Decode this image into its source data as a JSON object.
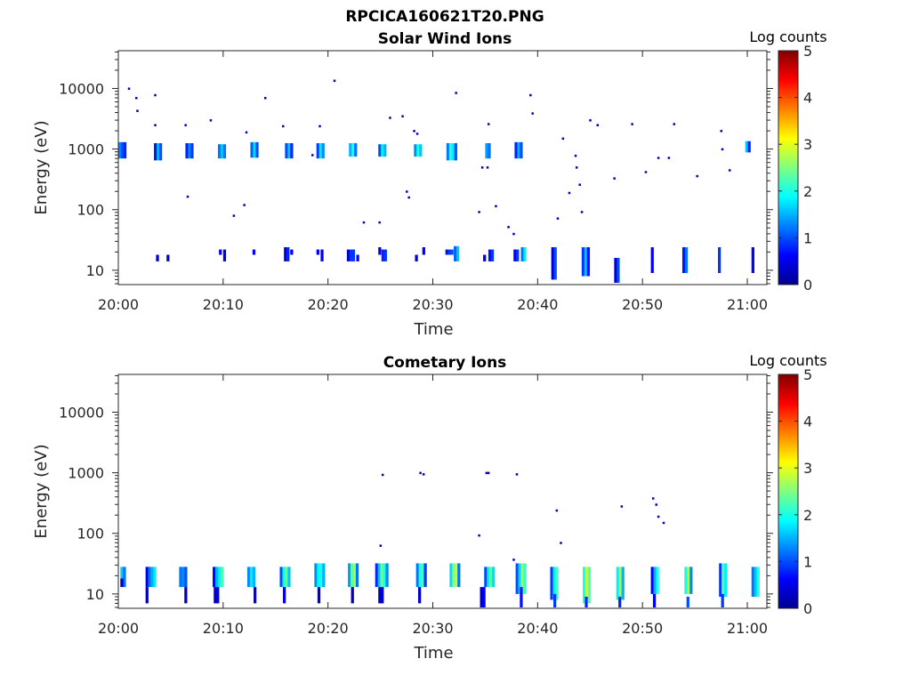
{
  "figure_title": "RPCICA160621T20.PNG",
  "chart_data": [
    {
      "type": "heatmap",
      "title": "Solar Wind Ions",
      "xlabel": "Time",
      "ylabel": "Energy (eV)",
      "x_unit": "minutes after 20:00",
      "xlim": [
        0,
        62
      ],
      "ylim": [
        5.8,
        42000
      ],
      "yscale": "log",
      "xtick_labels": [
        "20:00",
        "20:10",
        "20:20",
        "20:30",
        "20:40",
        "20:50",
        "21:00"
      ],
      "xtick_values": [
        0,
        10,
        20,
        30,
        40,
        50,
        60
      ],
      "ytick_labels": [
        "10",
        "100",
        "1000",
        "10000"
      ],
      "ytick_values": [
        10,
        100,
        1000,
        10000
      ],
      "colorbar": {
        "label": "Log counts",
        "range": [
          0,
          5
        ],
        "tick_labels": [
          "0",
          "1",
          "2",
          "3",
          "4",
          "5"
        ],
        "colormap": "jet"
      },
      "column_width_min": 0.25,
      "clusters": [
        {
          "t": 0.0,
          "e": [
            700,
            1300
          ],
          "values": [
            1.3,
            1.0,
            0.8
          ]
        },
        {
          "t": 3.4,
          "e": [
            650,
            1250
          ],
          "values": [
            0.7,
            1.5,
            1.0
          ]
        },
        {
          "t": 6.4,
          "e": [
            700,
            1250
          ],
          "values": [
            0.8,
            1.3,
            0.9
          ]
        },
        {
          "t": 9.5,
          "e": [
            700,
            1200
          ],
          "values": [
            1.2,
            1.6,
            1.2
          ]
        },
        {
          "t": 12.6,
          "e": [
            720,
            1300
          ],
          "values": [
            1.1,
            1.7,
            1.0
          ]
        },
        {
          "t": 15.9,
          "e": [
            700,
            1250
          ],
          "values": [
            1.0,
            1.6,
            0.8
          ]
        },
        {
          "t": 18.9,
          "e": [
            700,
            1250
          ],
          "values": [
            0.9,
            1.8,
            1.3
          ]
        },
        {
          "t": 22.0,
          "e": [
            750,
            1250
          ],
          "values": [
            1.5,
            2.0,
            1.2
          ]
        },
        {
          "t": 24.8,
          "e": [
            750,
            1200
          ],
          "values": [
            1.0,
            1.8,
            1.5
          ]
        },
        {
          "t": 28.2,
          "e": [
            750,
            1200
          ],
          "values": [
            1.3,
            2.0,
            1.6
          ]
        },
        {
          "t": 31.3,
          "e": [
            650,
            1250
          ],
          "values": [
            1.2,
            2.1,
            1.8,
            1.0
          ]
        },
        {
          "t": 35.0,
          "e": [
            700,
            1250
          ],
          "values": [
            1.4,
            1.2
          ]
        },
        {
          "t": 37.8,
          "e": [
            700,
            1300
          ],
          "values": [
            0.8,
            1.5,
            1.0
          ]
        },
        {
          "t": 59.8,
          "e": [
            880,
            1350
          ],
          "values": [
            1.6,
            0.8
          ]
        },
        {
          "t": 3.6,
          "e": [
            14,
            18
          ],
          "values": [
            0.4
          ]
        },
        {
          "t": 4.6,
          "e": [
            14,
            18
          ],
          "values": [
            0.5
          ]
        },
        {
          "t": 9.6,
          "e": [
            18,
            22
          ],
          "values": [
            0.6
          ]
        },
        {
          "t": 10.0,
          "e": [
            14,
            22
          ],
          "values": [
            0.5
          ]
        },
        {
          "t": 12.8,
          "e": [
            18,
            22
          ],
          "values": [
            0.6
          ]
        },
        {
          "t": 15.8,
          "e": [
            14,
            24
          ],
          "values": [
            0.3,
            0.8
          ]
        },
        {
          "t": 16.4,
          "e": [
            18,
            22
          ],
          "values": [
            0.6
          ]
        },
        {
          "t": 18.9,
          "e": [
            18,
            22
          ],
          "values": [
            0.6
          ]
        },
        {
          "t": 19.3,
          "e": [
            14,
            22
          ],
          "values": [
            0.5
          ]
        },
        {
          "t": 21.8,
          "e": [
            14,
            22
          ],
          "values": [
            0.4,
            0.9,
            0.9
          ]
        },
        {
          "t": 22.7,
          "e": [
            14,
            18
          ],
          "values": [
            0.6
          ]
        },
        {
          "t": 24.8,
          "e": [
            18,
            24
          ],
          "values": [
            0.5
          ]
        },
        {
          "t": 25.1,
          "e": [
            14,
            22
          ],
          "values": [
            0.8,
            0.9
          ]
        },
        {
          "t": 28.3,
          "e": [
            14,
            18
          ],
          "values": [
            0.5
          ]
        },
        {
          "t": 29.0,
          "e": [
            18,
            24
          ],
          "values": [
            0.6
          ]
        },
        {
          "t": 31.2,
          "e": [
            18,
            22
          ],
          "values": [
            0.7,
            0.9,
            1.0
          ]
        },
        {
          "t": 32.0,
          "e": [
            14,
            25
          ],
          "values": [
            1.1,
            1.6
          ]
        },
        {
          "t": 34.8,
          "e": [
            14,
            18
          ],
          "values": [
            0.5
          ]
        },
        {
          "t": 35.3,
          "e": [
            14,
            22
          ],
          "values": [
            0.7,
            0.9
          ]
        },
        {
          "t": 37.7,
          "e": [
            14,
            22
          ],
          "values": [
            0.6,
            0.9
          ]
        },
        {
          "t": 38.4,
          "e": [
            14,
            24
          ],
          "values": [
            1.2,
            1.8
          ]
        },
        {
          "t": 41.3,
          "e": [
            7,
            24
          ],
          "values": [
            0.4,
            1.0
          ]
        },
        {
          "t": 44.2,
          "e": [
            8,
            24
          ],
          "values": [
            0.9,
            1.6,
            0.7
          ]
        },
        {
          "t": 47.3,
          "e": [
            6.2,
            16
          ],
          "values": [
            0.4,
            1.0
          ]
        },
        {
          "t": 50.8,
          "e": [
            9,
            24
          ],
          "values": [
            0.6
          ]
        },
        {
          "t": 53.8,
          "e": [
            9,
            24
          ],
          "values": [
            0.7,
            1.2
          ]
        },
        {
          "t": 57.2,
          "e": [
            9,
            24
          ],
          "values": [
            0.9
          ]
        },
        {
          "t": 60.4,
          "e": [
            9,
            24
          ],
          "values": [
            0.6
          ]
        }
      ],
      "dots": [
        [
          1.0,
          10000
        ],
        [
          1.7,
          7000
        ],
        [
          1.8,
          4300
        ],
        [
          3.5,
          7800
        ],
        [
          3.5,
          2500
        ],
        [
          6.4,
          2500
        ],
        [
          6.6,
          165
        ],
        [
          8.8,
          3000
        ],
        [
          11.0,
          80
        ],
        [
          12.0,
          120
        ],
        [
          12.2,
          1900
        ],
        [
          14.0,
          7000
        ],
        [
          15.7,
          2400
        ],
        [
          18.5,
          800
        ],
        [
          19.2,
          2400
        ],
        [
          20.6,
          13500
        ],
        [
          23.4,
          62
        ],
        [
          24.9,
          62
        ],
        [
          25.9,
          3300
        ],
        [
          27.1,
          3500
        ],
        [
          27.5,
          200
        ],
        [
          27.7,
          160
        ],
        [
          28.2,
          2000
        ],
        [
          28.5,
          1800
        ],
        [
          32.2,
          8500
        ],
        [
          34.4,
          92
        ],
        [
          34.7,
          500
        ],
        [
          35.2,
          500
        ],
        [
          35.3,
          2600
        ],
        [
          36.0,
          115
        ],
        [
          37.2,
          52
        ],
        [
          37.7,
          40
        ],
        [
          39.3,
          7800
        ],
        [
          39.5,
          3900
        ],
        [
          41.9,
          72
        ],
        [
          42.4,
          1500
        ],
        [
          43.0,
          190
        ],
        [
          43.6,
          780
        ],
        [
          43.7,
          500
        ],
        [
          44.0,
          260
        ],
        [
          44.2,
          92
        ],
        [
          45.0,
          3000
        ],
        [
          45.7,
          2500
        ],
        [
          47.3,
          330
        ],
        [
          49.0,
          2600
        ],
        [
          50.3,
          420
        ],
        [
          51.5,
          720
        ],
        [
          52.5,
          720
        ],
        [
          53.0,
          2600
        ],
        [
          55.2,
          360
        ],
        [
          57.5,
          2000
        ],
        [
          57.6,
          1000
        ],
        [
          58.3,
          450
        ]
      ]
    },
    {
      "type": "heatmap",
      "title": "Cometary Ions",
      "xlabel": "Time",
      "ylabel": "Energy (eV)",
      "x_unit": "minutes after 20:00",
      "xlim": [
        0,
        62
      ],
      "ylim": [
        5.8,
        42000
      ],
      "yscale": "log",
      "xtick_labels": [
        "20:00",
        "20:10",
        "20:20",
        "20:30",
        "20:40",
        "20:50",
        "21:00"
      ],
      "xtick_values": [
        0,
        10,
        20,
        30,
        40,
        50,
        60
      ],
      "ytick_labels": [
        "10",
        "100",
        "1000",
        "10000"
      ],
      "ytick_values": [
        10,
        100,
        1000,
        10000
      ],
      "colorbar": {
        "label": "Log counts",
        "range": [
          0,
          5
        ],
        "tick_labels": [
          "0",
          "1",
          "2",
          "3",
          "4",
          "5"
        ],
        "colormap": "jet"
      },
      "column_width_min": 0.25,
      "clusters": [
        {
          "t": 0.2,
          "e": [
            13,
            28
          ],
          "values": [
            1.6,
            1.2
          ]
        },
        {
          "t": 2.6,
          "e": [
            13,
            28
          ],
          "values": [
            0.5,
            1.2,
            1.5,
            1.8
          ]
        },
        {
          "t": 5.8,
          "e": [
            13,
            28
          ],
          "values": [
            1.2,
            1.3,
            1.0
          ]
        },
        {
          "t": 9.0,
          "e": [
            13,
            28
          ],
          "values": [
            0.6,
            1.5,
            1.8,
            2.2
          ]
        },
        {
          "t": 12.3,
          "e": [
            13,
            28
          ],
          "values": [
            1.3,
            1.8,
            1.5
          ]
        },
        {
          "t": 15.4,
          "e": [
            13,
            28
          ],
          "values": [
            1.0,
            1.9,
            2.4,
            1.6
          ]
        },
        {
          "t": 18.7,
          "e": [
            13,
            32
          ],
          "values": [
            1.3,
            1.9,
            2.0,
            1.5
          ]
        },
        {
          "t": 21.9,
          "e": [
            13,
            32
          ],
          "values": [
            1.4,
            2.3,
            2.7,
            1.2
          ]
        },
        {
          "t": 24.5,
          "e": [
            13,
            32
          ],
          "values": [
            0.8,
            1.6,
            2.4,
            2.0,
            1.3
          ]
        },
        {
          "t": 28.4,
          "e": [
            13,
            32
          ],
          "values": [
            1.2,
            2.0,
            2.2,
            0.9
          ]
        },
        {
          "t": 31.6,
          "e": [
            13,
            32
          ],
          "values": [
            1.7,
            2.5,
            2.8,
            1.2
          ]
        },
        {
          "t": 34.9,
          "e": [
            13,
            28
          ],
          "values": [
            1.0,
            1.8,
            2.3,
            1.7
          ]
        },
        {
          "t": 37.9,
          "e": [
            10,
            32
          ],
          "values": [
            1.0,
            1.7,
            2.6,
            2.1
          ]
        },
        {
          "t": 41.2,
          "e": [
            8,
            28
          ],
          "values": [
            0.9,
            1.8,
            2.2
          ]
        },
        {
          "t": 44.3,
          "e": [
            7,
            28
          ],
          "values": [
            2.0,
            2.8,
            2.3
          ]
        },
        {
          "t": 47.5,
          "e": [
            8,
            28
          ],
          "values": [
            1.8,
            2.6,
            1.5
          ]
        },
        {
          "t": 50.8,
          "e": [
            10,
            28
          ],
          "values": [
            0.6,
            1.5,
            2.0
          ]
        },
        {
          "t": 54.0,
          "e": [
            10,
            28
          ],
          "values": [
            1.9,
            2.7,
            1.3
          ]
        },
        {
          "t": 57.3,
          "e": [
            9,
            32
          ],
          "values": [
            0.9,
            2.3,
            1.8
          ]
        },
        {
          "t": 60.4,
          "e": [
            9,
            28
          ],
          "values": [
            1.2,
            1.6,
            2.0
          ]
        },
        {
          "t": 0.2,
          "e": [
            13,
            18
          ],
          "values": [
            0.3
          ]
        },
        {
          "t": 2.6,
          "e": [
            7,
            13
          ],
          "values": [
            0.3
          ]
        },
        {
          "t": 6.3,
          "e": [
            7,
            13
          ],
          "values": [
            0.3
          ]
        },
        {
          "t": 9.1,
          "e": [
            7,
            13
          ],
          "values": [
            0.3,
            0.5
          ]
        },
        {
          "t": 12.9,
          "e": [
            7,
            13
          ],
          "values": [
            0.6
          ]
        },
        {
          "t": 15.7,
          "e": [
            7,
            13
          ],
          "values": [
            0.5
          ]
        },
        {
          "t": 19.0,
          "e": [
            7,
            13
          ],
          "values": [
            0.4
          ]
        },
        {
          "t": 22.2,
          "e": [
            7,
            13
          ],
          "values": [
            0.3
          ]
        },
        {
          "t": 24.8,
          "e": [
            7,
            13
          ],
          "values": [
            0.3,
            0.4
          ]
        },
        {
          "t": 28.6,
          "e": [
            7,
            13
          ],
          "values": [
            0.4
          ]
        },
        {
          "t": 34.5,
          "e": [
            6,
            13
          ],
          "values": [
            0.3,
            0.6
          ]
        },
        {
          "t": 38.3,
          "e": [
            6,
            13
          ],
          "values": [
            0.7
          ]
        },
        {
          "t": 41.5,
          "e": [
            6,
            10
          ],
          "values": [
            0.9
          ]
        },
        {
          "t": 44.5,
          "e": [
            6,
            9
          ],
          "values": [
            0.8
          ]
        },
        {
          "t": 47.7,
          "e": [
            6,
            9
          ],
          "values": [
            0.8
          ]
        },
        {
          "t": 51.0,
          "e": [
            6,
            10
          ],
          "values": [
            0.5
          ]
        },
        {
          "t": 54.2,
          "e": [
            6,
            9
          ],
          "values": [
            1.0
          ]
        },
        {
          "t": 57.5,
          "e": [
            6,
            10
          ],
          "values": [
            0.9
          ]
        }
      ],
      "dots": [
        [
          25.2,
          930
        ],
        [
          28.8,
          1000
        ],
        [
          29.1,
          950
        ],
        [
          35.1,
          1000
        ],
        [
          35.3,
          1000
        ],
        [
          38.0,
          950
        ],
        [
          25.0,
          63
        ],
        [
          34.4,
          93
        ],
        [
          37.7,
          37
        ],
        [
          41.8,
          240
        ],
        [
          42.2,
          70
        ],
        [
          48.0,
          280
        ],
        [
          51.0,
          380
        ],
        [
          51.3,
          300
        ],
        [
          51.5,
          190
        ],
        [
          52.0,
          150
        ]
      ]
    }
  ]
}
